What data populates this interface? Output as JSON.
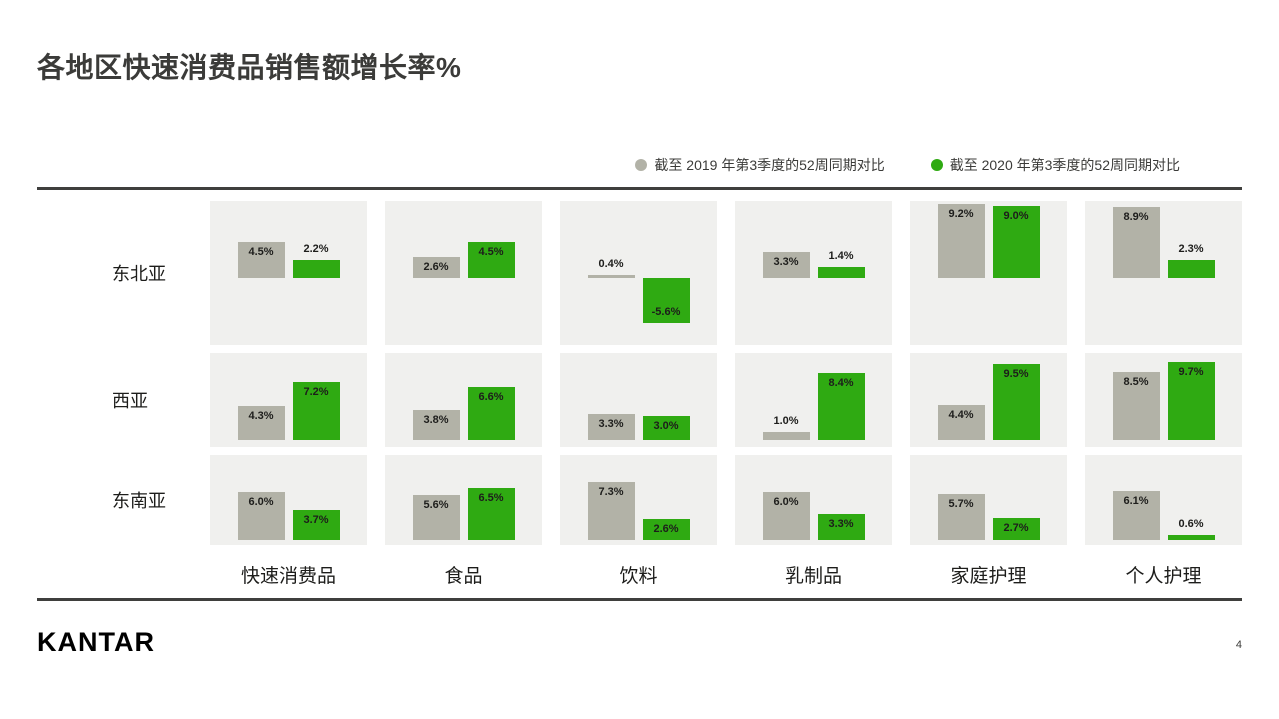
{
  "page": {
    "title": "各地区快速消费品销售额增长率%",
    "brand": "KANTAR",
    "page_number": "4"
  },
  "legend": [
    {
      "label": "截至 2019 年第3季度的52周同期对比",
      "color": "#b2b2a7"
    },
    {
      "label": "截至 2020 年第3季度的52周同期对比",
      "color": "#2faa12"
    }
  ],
  "colors": {
    "bar_2019": "#b2b2a7",
    "bar_2020": "#2faa12",
    "panel_bg": "#f0f0ee",
    "rule": "#3f3f3d"
  },
  "chart_data": {
    "type": "bar",
    "title": "各地区快速消费品销售额增长率%",
    "unit": "%",
    "categories": [
      "快速消费品",
      "食品",
      "饮料",
      "乳制品",
      "家庭护理",
      "个人护理"
    ],
    "series_names": [
      "截至 2019 年第3季度的52周同期对比",
      "截至 2020 年第3季度的52周同期对比"
    ],
    "rows": [
      {
        "region": "东北亚",
        "y2019": [
          4.5,
          2.6,
          0.4,
          3.3,
          9.2,
          8.9
        ],
        "y2020": [
          2.2,
          4.5,
          -5.6,
          1.4,
          9.0,
          2.3
        ]
      },
      {
        "region": "西亚",
        "y2019": [
          4.3,
          3.8,
          3.3,
          1.0,
          4.4,
          8.5
        ],
        "y2020": [
          7.2,
          6.6,
          3.0,
          8.4,
          9.5,
          9.7
        ]
      },
      {
        "region": "东南亚",
        "y2019": [
          6.0,
          5.6,
          7.3,
          6.0,
          5.7,
          6.1
        ],
        "y2020": [
          3.7,
          6.5,
          2.6,
          3.3,
          2.7,
          0.6
        ]
      }
    ]
  }
}
